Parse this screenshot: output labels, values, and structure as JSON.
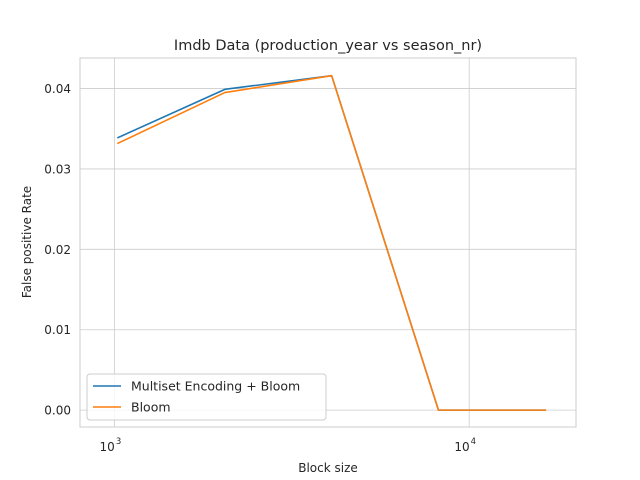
{
  "chart_data": {
    "type": "line",
    "title": "Imdb Data (production_year vs season_nr)",
    "xlabel": "Block size",
    "ylabel": "False positive Rate",
    "xscale": "log",
    "xlim": [
      800,
      20000
    ],
    "ylim": [
      -0.0021,
      0.0438
    ],
    "grid": true,
    "legend_position": "lower-left",
    "x_ticks": [
      {
        "value": 1000,
        "base": "10",
        "exp": "3"
      },
      {
        "value": 10000,
        "base": "10",
        "exp": "4"
      }
    ],
    "y_ticks": [
      {
        "value": 0.0,
        "label": "0.00"
      },
      {
        "value": 0.01,
        "label": "0.01"
      },
      {
        "value": 0.02,
        "label": "0.02"
      },
      {
        "value": 0.03,
        "label": "0.03"
      },
      {
        "value": 0.04,
        "label": "0.04"
      }
    ],
    "x": [
      1024,
      2048,
      4096,
      8192,
      16384
    ],
    "series": [
      {
        "name": "Multiset Encoding + Bloom",
        "color": "#1f77b4",
        "values": [
          0.0339,
          0.0399,
          0.0416,
          0.0,
          0.0
        ]
      },
      {
        "name": "Bloom",
        "color": "#ff7f0e",
        "values": [
          0.0332,
          0.0395,
          0.0416,
          0.0,
          0.0
        ]
      }
    ]
  }
}
